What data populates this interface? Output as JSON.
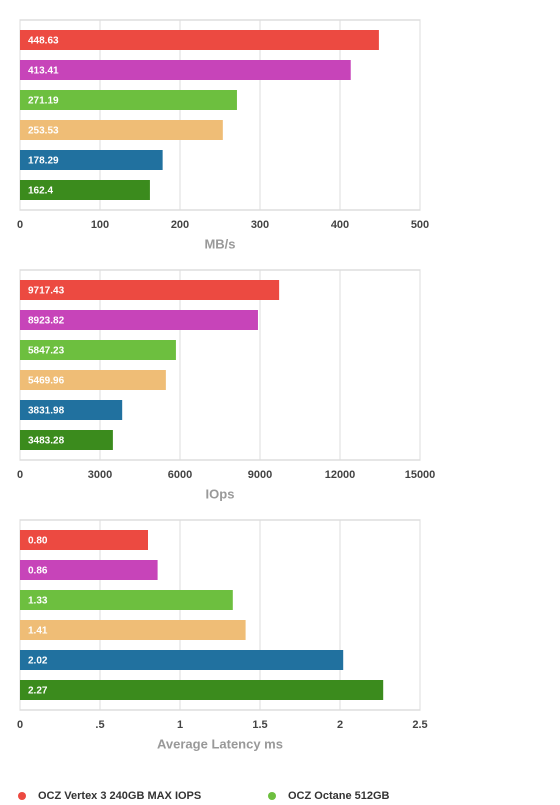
{
  "chart_data": [
    {
      "type": "bar",
      "orientation": "horizontal",
      "x_label": "MB/s",
      "values": [
        448.63,
        413.41,
        271.19,
        253.53,
        178.29,
        162.4
      ],
      "colors": [
        "#ec4a41",
        "#c744b9",
        "#6dbf3f",
        "#efbd76",
        "#21719f",
        "#3b8b1d"
      ],
      "xlim": [
        0,
        500
      ],
      "xticks": [
        0,
        100,
        200,
        300,
        400,
        500
      ],
      "grid": true
    },
    {
      "type": "bar",
      "orientation": "horizontal",
      "x_label": "IOps",
      "values": [
        9717.43,
        8923.82,
        5847.23,
        5469.96,
        3831.98,
        3483.28
      ],
      "colors": [
        "#ec4a41",
        "#c744b9",
        "#6dbf3f",
        "#efbd76",
        "#21719f",
        "#3b8b1d"
      ],
      "xlim": [
        0,
        15000
      ],
      "xticks": [
        0,
        3000,
        6000,
        9000,
        12000,
        15000
      ],
      "grid": true
    },
    {
      "type": "bar",
      "orientation": "horizontal",
      "x_label": "Average Latency ms",
      "values": [
        0.8,
        0.86,
        1.33,
        1.41,
        2.02,
        2.27
      ],
      "value_labels": [
        "0.80",
        "0.86",
        "1.33",
        "1.41",
        "2.02",
        "2.27"
      ],
      "colors": [
        "#ec4a41",
        "#c744b9",
        "#6dbf3f",
        "#efbd76",
        "#21719f",
        "#3b8b1d"
      ],
      "xlim": [
        0,
        2.5
      ],
      "xticks": [
        0,
        {
          "value": 0.5,
          "label": ".5"
        },
        1,
        1.5,
        2,
        2.5
      ],
      "grid": true
    }
  ],
  "legend": [
    {
      "name": "OCZ Vertex 3 240GB MAX IOPS",
      "color": "#ec4a41"
    },
    {
      "name": "OCZ Octane 512GB",
      "color": "#6dbf3f"
    }
  ]
}
